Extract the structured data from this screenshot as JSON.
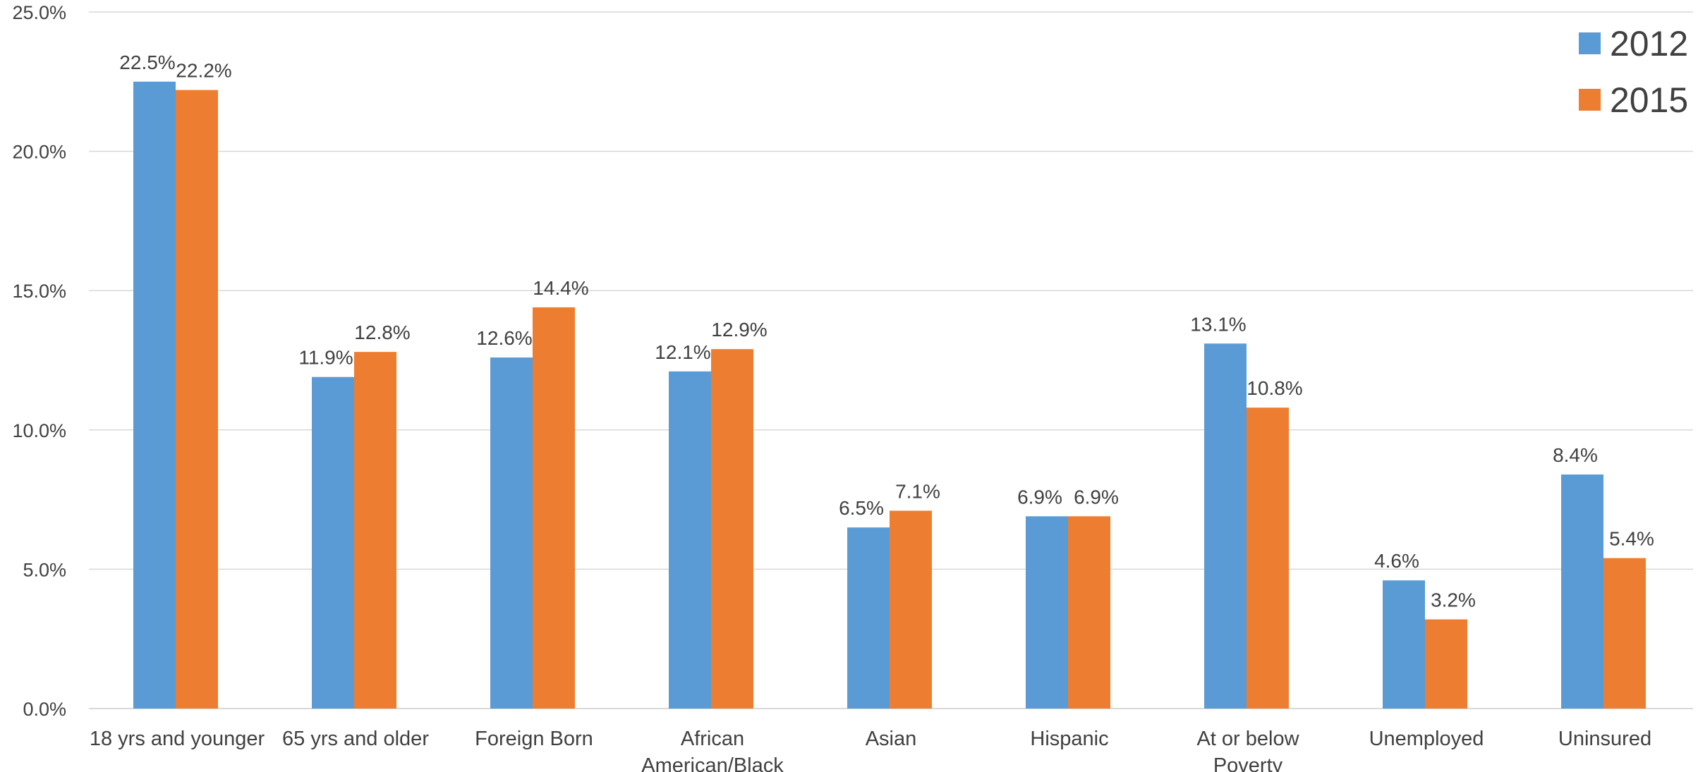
{
  "chart_data": {
    "type": "bar",
    "categories": [
      [
        "18 yrs and younger"
      ],
      [
        "65 yrs and older"
      ],
      [
        "Foreign Born"
      ],
      [
        "African",
        "American/Black"
      ],
      [
        "Asian"
      ],
      [
        "Hispanic"
      ],
      [
        "At or below",
        "Poverty"
      ],
      [
        "Unemployed"
      ],
      [
        "Uninsured"
      ]
    ],
    "series": [
      {
        "name": "2012",
        "color": "#5b9bd5",
        "values": [
          22.5,
          11.9,
          12.6,
          12.1,
          6.5,
          6.9,
          13.1,
          4.6,
          8.4
        ],
        "labels": [
          "22.5%",
          "11.9%",
          "12.6%",
          "12.1%",
          "6.5%",
          "6.9%",
          "13.1%",
          "4.6%",
          "8.4%"
        ]
      },
      {
        "name": "2015",
        "color": "#ed7d31",
        "values": [
          22.2,
          12.8,
          14.4,
          12.9,
          7.1,
          6.9,
          10.8,
          3.2,
          5.4
        ],
        "labels": [
          "22.2%",
          "12.8%",
          "14.4%",
          "12.9%",
          "7.1%",
          "6.9%",
          "10.8%",
          "3.2%",
          "5.4%"
        ]
      }
    ],
    "yticks": [
      {
        "value": 0,
        "label": "0.0%"
      },
      {
        "value": 5,
        "label": "5.0%"
      },
      {
        "value": 10,
        "label": "10.0%"
      },
      {
        "value": 15,
        "label": "15.0%"
      },
      {
        "value": 20,
        "label": "20.0%"
      },
      {
        "value": 25,
        "label": "25.0%"
      }
    ],
    "ylim": [
      0,
      25
    ],
    "grid": true,
    "legend_position": "top-right",
    "title": "",
    "xlabel": "",
    "ylabel": ""
  }
}
